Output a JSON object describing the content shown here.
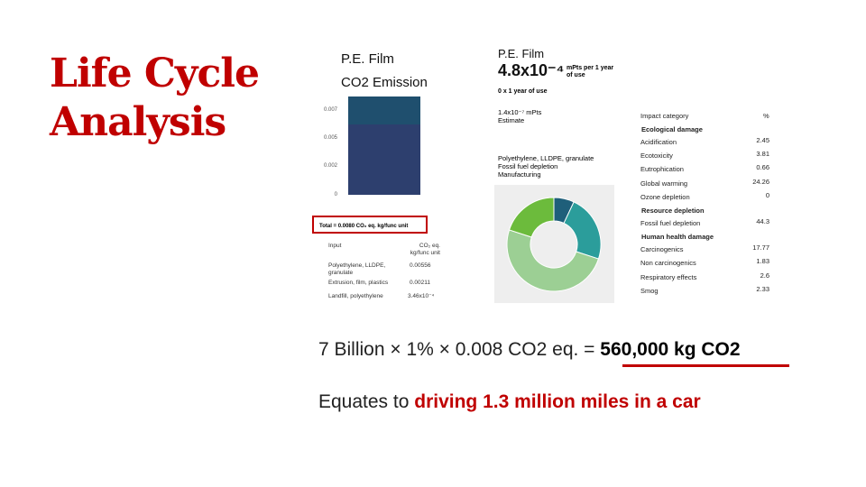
{
  "title": {
    "line1": "Life Cycle",
    "line2": "Analysis"
  },
  "left_panel": {
    "title1": "P.E. Film",
    "title2": "CO2 Emission",
    "y_ticks": [
      "0.007",
      "0.005",
      "0.002",
      "0"
    ],
    "bar_segments": [
      {
        "label": "top",
        "color": "#2e7d8c"
      },
      {
        "label": "mid",
        "color": "#1f4f6e"
      },
      {
        "label": "base",
        "color": "#2d3f6e"
      }
    ],
    "total_text": "Total = 0.0080 CO₂ eq. kg/func unit",
    "table_header_input": "Input",
    "table_header_value": "CO₂ eq. kg/func unit",
    "rows": [
      {
        "input": "Polyethylene, LLDPE, granulate",
        "value": "0.00556"
      },
      {
        "input": "Extrusion, film, plastics",
        "value": "0.00211"
      },
      {
        "input": "Landfill, polyethylene",
        "value": "3.46x10⁻⁴"
      }
    ]
  },
  "right_panel": {
    "title": "P.E. Film",
    "big_value": "4.8x10⁻⁴",
    "unit": "mPts per 1 year of use",
    "subtitle": "0 x 1 year of use",
    "estimate_value": "1.4x10⁻⁷ mPts",
    "estimate_label": "Estimate",
    "legend_lines": [
      "Polyethylene, LLDPE, granulate",
      "Fossil fuel depletion",
      "Manufacturing"
    ],
    "donut_colors": [
      "#1f5f7a",
      "#2b9d9b",
      "#9ccf94",
      "#6cbb3c"
    ],
    "impact_header": "Impact category",
    "percent_header": "%",
    "categories": [
      {
        "label": "Ecological damage",
        "heading": true
      },
      {
        "label": "Acidification",
        "value": "2.45"
      },
      {
        "label": "Ecotoxicity",
        "value": "3.81"
      },
      {
        "label": "Eutrophication",
        "value": "0.66"
      },
      {
        "label": "Global warming",
        "value": "24.26"
      },
      {
        "label": "Ozone depletion",
        "value": "0"
      },
      {
        "label": "Resource depletion",
        "heading": true
      },
      {
        "label": "Fossil fuel depletion",
        "value": "44.3"
      },
      {
        "label": "Human health damage",
        "heading": true
      },
      {
        "label": "Carcinogenics",
        "value": "17.77"
      },
      {
        "label": "Non carcinogenics",
        "value": "1.83"
      },
      {
        "label": "Respiratory effects",
        "value": "2.6"
      },
      {
        "label": "Smog",
        "value": "2.33"
      }
    ]
  },
  "equation": {
    "lhs": "7 Billion × 1% × 0.008 CO2 eq. = ",
    "rhs": "560,000 kg CO2"
  },
  "equates": {
    "prefix": "Equates to ",
    "highlight": "driving 1.3 million miles in a car"
  }
}
